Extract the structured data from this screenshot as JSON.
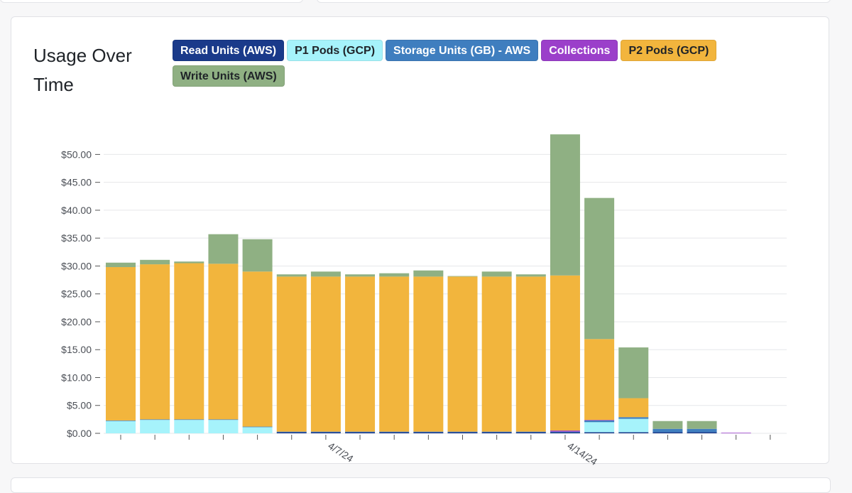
{
  "page": {
    "title": "Usage Over Time"
  },
  "legend": [
    {
      "name": "Read Units (AWS)",
      "color": "#1a3a8a",
      "text_color": "#ffffff"
    },
    {
      "name": "P1 Pods (GCP)",
      "color": "#a6f3fb",
      "text_color": "#1f2328"
    },
    {
      "name": "Storage Units (GB) - AWS",
      "color": "#3f7ebf",
      "text_color": "#ffffff"
    },
    {
      "name": "Collections",
      "color": "#9b3fca",
      "text_color": "#ffffff"
    },
    {
      "name": "P2 Pods (GCP)",
      "color": "#f2b53d",
      "text_color": "#1f2328"
    },
    {
      "name": "Write Units (AWS)",
      "color": "#8fb083",
      "text_color": "#1f2328"
    }
  ],
  "chart_data": {
    "type": "bar",
    "stacked": true,
    "title": "Usage Over Time",
    "ylim": [
      0,
      54
    ],
    "yticks": [
      0,
      5,
      10,
      15,
      20,
      25,
      30,
      35,
      40,
      45,
      50
    ],
    "ytick_labels": [
      "$0.00",
      "$5.00",
      "$10.00",
      "$15.00",
      "$20.00",
      "$25.00",
      "$30.00",
      "$35.00",
      "$40.00",
      "$45.00",
      "$50.00"
    ],
    "x_tick_labels": [
      {
        "index": 6,
        "label": "4/7/24"
      },
      {
        "index": 13,
        "label": "4/14/24"
      }
    ],
    "num_slots": 20,
    "series": [
      {
        "name": "Read Units (AWS)",
        "color": "#1a3a8a",
        "values": [
          0,
          0,
          0,
          0,
          0,
          0.2,
          0.2,
          0.2,
          0.2,
          0.2,
          0.2,
          0.2,
          0.2,
          0.2,
          0.2,
          0.2,
          0.2,
          0.2,
          0,
          0
        ]
      },
      {
        "name": "P1 Pods (GCP)",
        "color": "#a6f3fb",
        "values": [
          2.2,
          2.4,
          2.4,
          2.4,
          1.1,
          0,
          0,
          0,
          0,
          0,
          0,
          0,
          0,
          0,
          1.8,
          2.4,
          0,
          0,
          0,
          0
        ]
      },
      {
        "name": "Storage Units (GB) - AWS",
        "color": "#3f7ebf",
        "values": [
          0.1,
          0.1,
          0.1,
          0.1,
          0.1,
          0.1,
          0.1,
          0.1,
          0.1,
          0.1,
          0.1,
          0.1,
          0.1,
          0.1,
          0.3,
          0.3,
          0.6,
          0.6,
          0,
          0
        ]
      },
      {
        "name": "Collections",
        "color": "#9b3fca",
        "values": [
          0,
          0,
          0,
          0,
          0,
          0,
          0,
          0,
          0,
          0,
          0,
          0,
          0,
          0.2,
          0.1,
          0,
          0,
          0,
          0.1,
          0
        ]
      },
      {
        "name": "P2 Pods (GCP)",
        "color": "#f2b53d",
        "values": [
          27.5,
          27.8,
          28.0,
          27.9,
          27.8,
          27.8,
          27.8,
          27.8,
          27.8,
          27.8,
          27.8,
          27.8,
          27.8,
          27.8,
          14.5,
          3.4,
          0,
          0,
          0,
          0
        ]
      },
      {
        "name": "Write Units (AWS)",
        "color": "#8fb083",
        "values": [
          0.8,
          0.8,
          0.3,
          5.3,
          5.8,
          0.4,
          0.9,
          0.4,
          0.6,
          1.1,
          0.1,
          0.9,
          0.4,
          25.3,
          25.3,
          9.1,
          1.4,
          1.4,
          0,
          0
        ]
      }
    ]
  }
}
